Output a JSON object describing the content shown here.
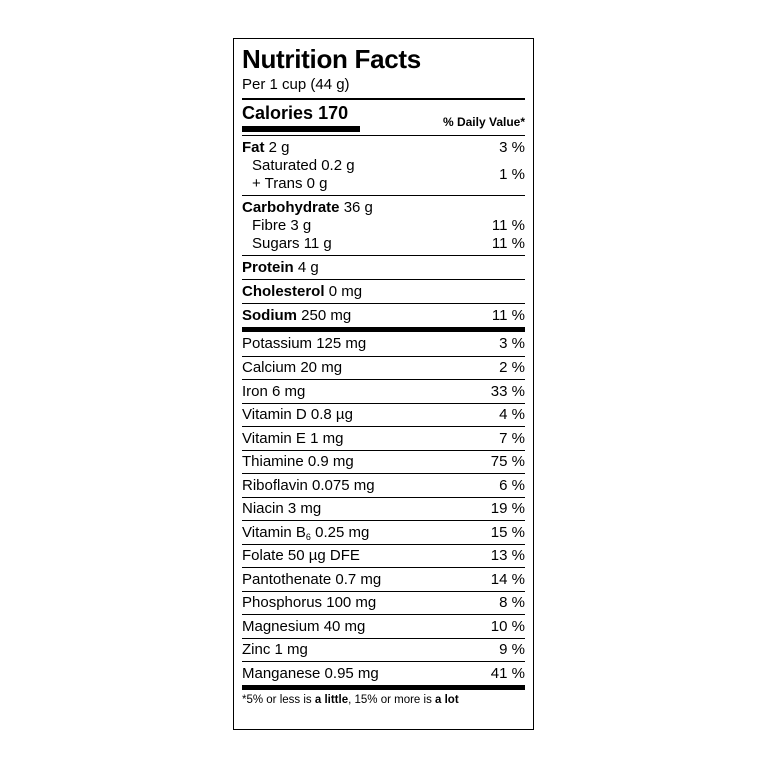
{
  "header": {
    "title": "Nutrition Facts",
    "serving": "Per 1 cup (44 g)",
    "calories_label": "Calories",
    "calories_value": "170",
    "dv_header": "% Daily Value*"
  },
  "fat": {
    "label": "Fat",
    "amount": "2 g",
    "dv": "3 %"
  },
  "fat_sub": {
    "saturated": "Saturated 0.2 g",
    "trans": "+ Trans 0 g",
    "dv": "1 %"
  },
  "carbohydrate": {
    "label": "Carbohydrate",
    "amount": "36 g"
  },
  "carb_sub": [
    {
      "label": "Fibre 3 g",
      "dv": "11 %"
    },
    {
      "label": "Sugars 11 g",
      "dv": "11 %"
    }
  ],
  "protein": {
    "label": "Protein",
    "amount": "4 g"
  },
  "cholesterol": {
    "label": "Cholesterol",
    "amount": "0 mg"
  },
  "sodium": {
    "label": "Sodium",
    "amount": "250 mg",
    "dv": "11 %"
  },
  "micros": [
    {
      "label": "Potassium 125 mg",
      "dv": "3 %"
    },
    {
      "label": "Calcium 20 mg",
      "dv": "2 %"
    },
    {
      "label": "Iron 6 mg",
      "dv": "33 %"
    },
    {
      "label": "Vitamin D 0.8 µg",
      "dv": "4 %"
    },
    {
      "label": "Vitamin E 1 mg",
      "dv": "7 %"
    },
    {
      "label": "Thiamine 0.9 mg",
      "dv": "75 %"
    },
    {
      "label": "Riboflavin 0.075 mg",
      "dv": "6 %"
    },
    {
      "label": "Niacin 3 mg",
      "dv": "19 %"
    },
    {
      "label_pre": "Vitamin B",
      "label_sub": "6",
      "label_post": " 0.25 mg",
      "dv": "15 %"
    },
    {
      "label": "Folate 50 µg DFE",
      "dv": "13 %"
    },
    {
      "label": "Pantothenate 0.7 mg",
      "dv": "14 %"
    },
    {
      "label": "Phosphorus 100 mg",
      "dv": "8 %"
    },
    {
      "label": "Magnesium 40 mg",
      "dv": "10 %"
    },
    {
      "label": "Zinc 1 mg",
      "dv": "9 %"
    },
    {
      "label": "Manganese 0.95 mg",
      "dv": "41 %"
    }
  ],
  "footnote": {
    "part1": "*5% or less is ",
    "little": "a little",
    "part2": ", 15% or more is ",
    "lot": "a lot"
  }
}
